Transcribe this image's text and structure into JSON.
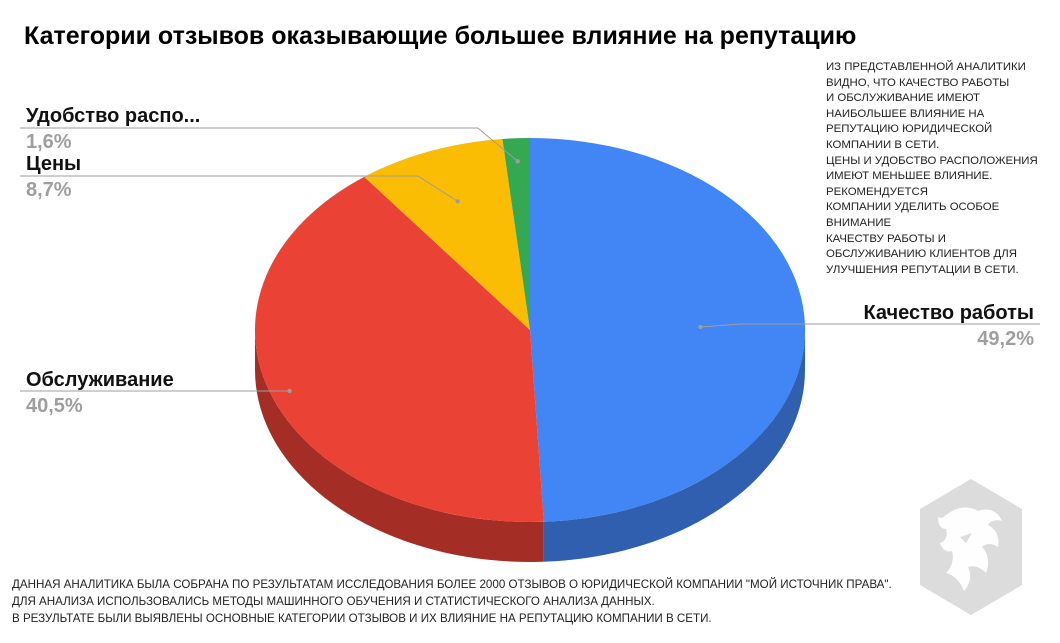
{
  "chart_data": {
    "type": "pie",
    "title": "Категории отзывов оказывающие большее влияние на репутацию",
    "slices": [
      {
        "label": "Качество работы",
        "pct_text": "49,2%",
        "value": 49.2,
        "color": "#4285f4",
        "side_color": "#2f5fae"
      },
      {
        "label": "Обслуживание",
        "pct_text": "40,5%",
        "value": 40.5,
        "color": "#ea4335",
        "side_color": "#a42e25"
      },
      {
        "label": "Цены",
        "pct_text": "8,7%",
        "value": 8.7,
        "color": "#fbbc04",
        "side_color": "#b08403"
      },
      {
        "label": "Удобство распо...",
        "pct_text": "1,6%",
        "value": 1.6,
        "color": "#34a853",
        "side_color": "#24763a"
      }
    ]
  },
  "note_lines": [
    "ИЗ ПРЕДСТАВЛЕННОЙ АНАЛИТИКИ",
    "ВИДНО, ЧТО КАЧЕСТВО РАБОТЫ",
    "И ОБСЛУЖИВАНИЕ ИМЕЮТ",
    "НАИБОЛЬШЕЕ ВЛИЯНИЕ НА",
    "РЕПУТАЦИЮ ЮРИДИЧЕСКОЙ",
    "КОМПАНИИ В СЕТИ.",
    "ЦЕНЫ И УДОБСТВО РАСПОЛОЖЕНИЯ",
    "ИМЕЮТ МЕНЬШЕЕ ВЛИЯНИЕ.",
    "РЕКОМЕНДУЕТСЯ",
    "КОМПАНИИ УДЕЛИТЬ ОСОБОЕ",
    "ВНИМАНИЕ",
    "КАЧЕСТВУ РАБОТЫ И",
    "ОБСЛУЖИВАНИЮ КЛИЕНТОВ ДЛЯ",
    "УЛУЧШЕНИЯ РЕПУТАЦИИ В СЕТИ."
  ],
  "footer_lines": [
    "ДАННАЯ АНАЛИТИКА БЫЛА СОБРАНА ПО РЕЗУЛЬТАТАМ ИССЛЕДОВАНИЯ БОЛЕЕ 2000 ОТЗЫВОВ О ЮРИДИЧЕСКОЙ КОМПАНИИ \"МОЙ ИСТОЧНИК ПРАВА\".",
    "ДЛЯ АНАЛИЗА ИСПОЛЬЗОВАЛИСЬ МЕТОДЫ МАШИННОГО ОБУЧЕНИЯ И СТАТИСТИЧЕСКОГО АНАЛИЗА ДАННЫХ.",
    "В РЕЗУЛЬТАТЕ БЫЛИ ВЫЯВЛЕНЫ ОСНОВНЫЕ КАТЕГОРИИ ОТЗЫВОВ И ИХ ВЛИЯНИЕ НА РЕПУТАЦИЮ КОМПАНИИ В СЕТИ."
  ],
  "logo": {
    "icon": "lion-head-logo-icon",
    "color": "#dcdcdc"
  }
}
